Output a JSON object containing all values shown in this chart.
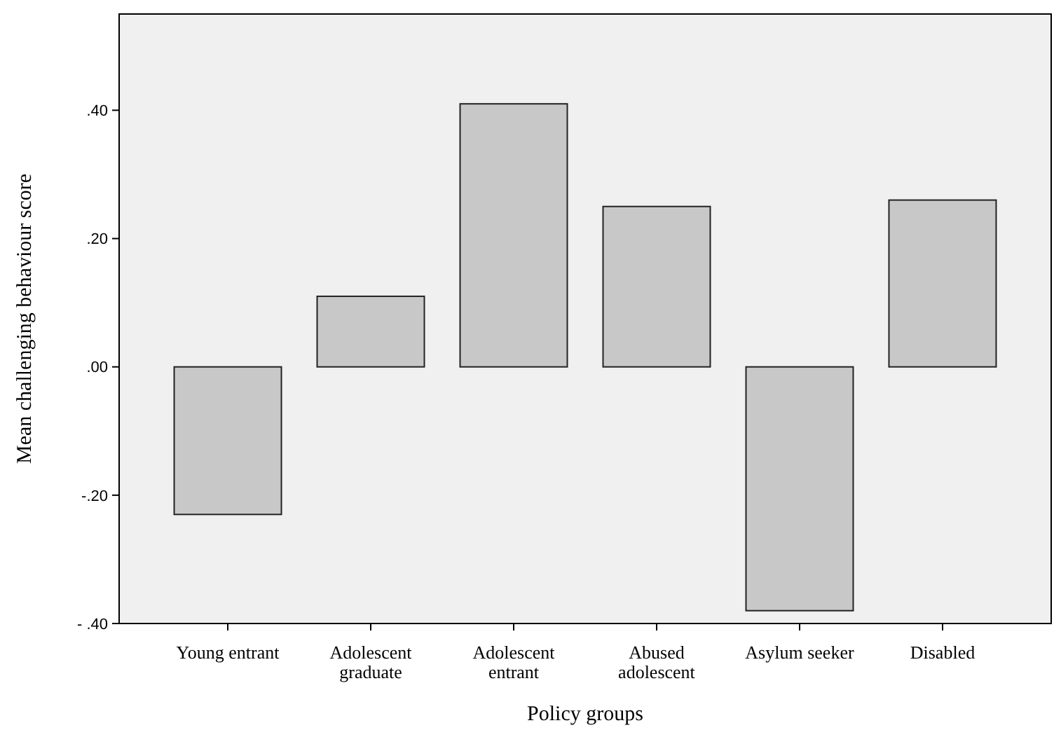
{
  "chart_data": {
    "type": "bar",
    "xlabel": "Policy groups",
    "ylabel": "Mean challenging behaviour score",
    "categories": [
      "Young entrant",
      "Adolescent graduate",
      "Adolescent entrant",
      "Abused adolescent",
      "Asylum seeker",
      "Disabled"
    ],
    "values": [
      -0.23,
      0.11,
      0.41,
      0.25,
      -0.38,
      0.26
    ],
    "color": "#c8c8c8",
    "ylim": [
      -0.4,
      0.55
    ],
    "yticks": [
      {
        "value": -0.4,
        "label": "- .40"
      },
      {
        "value": -0.2,
        "label": "-.20"
      },
      {
        "value": 0,
        "label": ".00"
      },
      {
        "value": 0.2,
        "label": ".20"
      },
      {
        "value": 0.4,
        "label": ".40"
      }
    ],
    "grid": false
  }
}
